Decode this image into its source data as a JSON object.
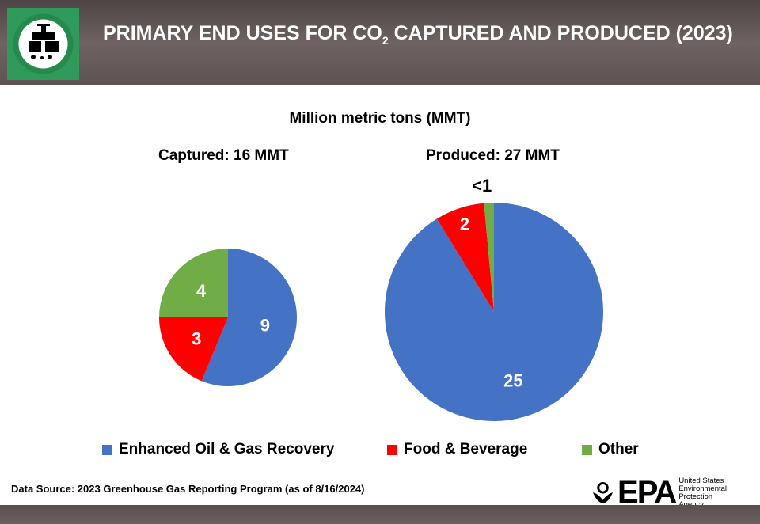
{
  "header": {
    "title_pre": "PRIMARY END USES FOR CO",
    "title_sub": "2",
    "title_post": " CAPTURED AND PRODUCED (2023)",
    "logo_icon": "co2-injection-icon"
  },
  "chart_data": [
    {
      "type": "pie",
      "title": "Captured: 16 MMT",
      "unit_label": "Million metric tons (MMT)",
      "categories": [
        "Enhanced Oil & Gas Recovery",
        "Food & Beverage",
        "Other"
      ],
      "values": [
        9,
        3,
        4
      ],
      "data_labels": [
        "9",
        "3",
        "4"
      ],
      "colors": [
        "#4472c4",
        "#ff0000",
        "#70ad47"
      ]
    },
    {
      "type": "pie",
      "title": "Produced: 27 MMT",
      "categories": [
        "Enhanced Oil & Gas Recovery",
        "Food & Beverage",
        "Other"
      ],
      "values": [
        25,
        2,
        0.4
      ],
      "data_labels": [
        "25",
        "2",
        "<1"
      ],
      "colors": [
        "#4472c4",
        "#ff0000",
        "#70ad47"
      ]
    }
  ],
  "legend": [
    {
      "label": "Enhanced Oil & Gas Recovery",
      "color": "#4472c4"
    },
    {
      "label": "Food & Beverage",
      "color": "#ff0000"
    },
    {
      "label": "Other",
      "color": "#70ad47"
    }
  ],
  "source": "Data Source: 2023 Greenhouse Gas Reporting Program (as of 8/16/2024)",
  "epa": {
    "logo": "EPA",
    "line1": "United States",
    "line2": "Environmental Protection",
    "line3": "Agency"
  }
}
